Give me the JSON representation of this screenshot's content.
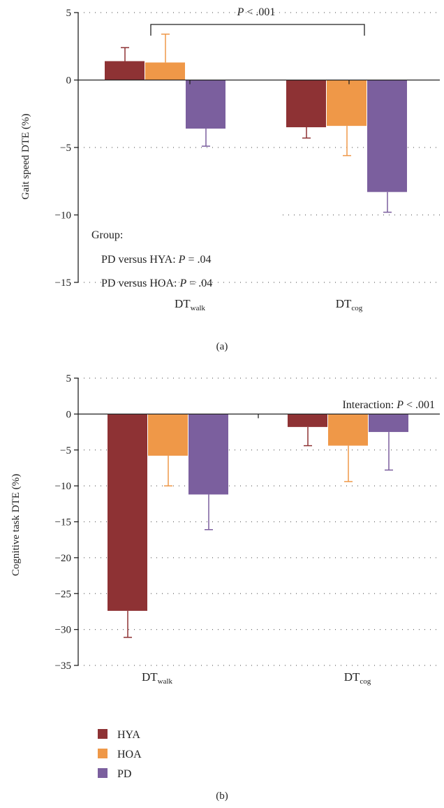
{
  "colors": {
    "HYA": "#8e3234",
    "HOA": "#ef9848",
    "PD": "#7b5f9e"
  },
  "legend": [
    {
      "key": "HYA",
      "label": "HYA"
    },
    {
      "key": "HOA",
      "label": "HOA"
    },
    {
      "key": "PD",
      "label": "PD"
    }
  ],
  "chart_data": [
    {
      "type": "bar",
      "panel_label": "(a)",
      "ylabel": "Gait speed DTE (%)",
      "ylim": [
        -15,
        5
      ],
      "yticks": [
        5,
        0,
        -5,
        -10,
        -15
      ],
      "categories": [
        {
          "base": "DT",
          "sub": "walk"
        },
        {
          "base": "DT",
          "sub": "cog"
        }
      ],
      "series": [
        {
          "name": "HYA",
          "values": [
            1.4,
            -3.5
          ],
          "errors": [
            1.0,
            0.8
          ]
        },
        {
          "name": "HOA",
          "values": [
            1.3,
            -3.4
          ],
          "errors": [
            2.1,
            2.2
          ]
        },
        {
          "name": "PD",
          "values": [
            -3.6,
            -8.3
          ],
          "errors": [
            1.3,
            1.5
          ]
        }
      ],
      "annotations": {
        "bracket_label": {
          "italic": "P",
          "rest": " < .001"
        },
        "group_title": "Group:",
        "group_lines": [
          {
            "prefix": "PD versus HYA: ",
            "italic": "P",
            "rest": " = .04"
          },
          {
            "prefix": "PD versus HOA: ",
            "italic": "P",
            "rest": " = .04"
          }
        ]
      },
      "grid": true
    },
    {
      "type": "bar",
      "panel_label": "(b)",
      "ylabel": "Cognitive task DTE (%)",
      "ylim": [
        -35,
        5
      ],
      "yticks": [
        5,
        0,
        -5,
        -10,
        -15,
        -20,
        -25,
        -30,
        -35
      ],
      "categories": [
        {
          "base": "DT",
          "sub": "walk"
        },
        {
          "base": "DT",
          "sub": "cog"
        }
      ],
      "series": [
        {
          "name": "HYA",
          "values": [
            -27.4,
            -1.8
          ],
          "errors": [
            3.7,
            2.6
          ]
        },
        {
          "name": "HOA",
          "values": [
            -5.8,
            -4.4
          ],
          "errors": [
            4.2,
            5.0
          ]
        },
        {
          "name": "PD",
          "values": [
            -11.2,
            -2.5
          ],
          "errors": [
            4.9,
            5.3
          ]
        }
      ],
      "annotations": {
        "interaction": {
          "prefix": "Interaction: ",
          "italic": "P",
          "rest": " < .001"
        }
      },
      "grid": true
    }
  ]
}
